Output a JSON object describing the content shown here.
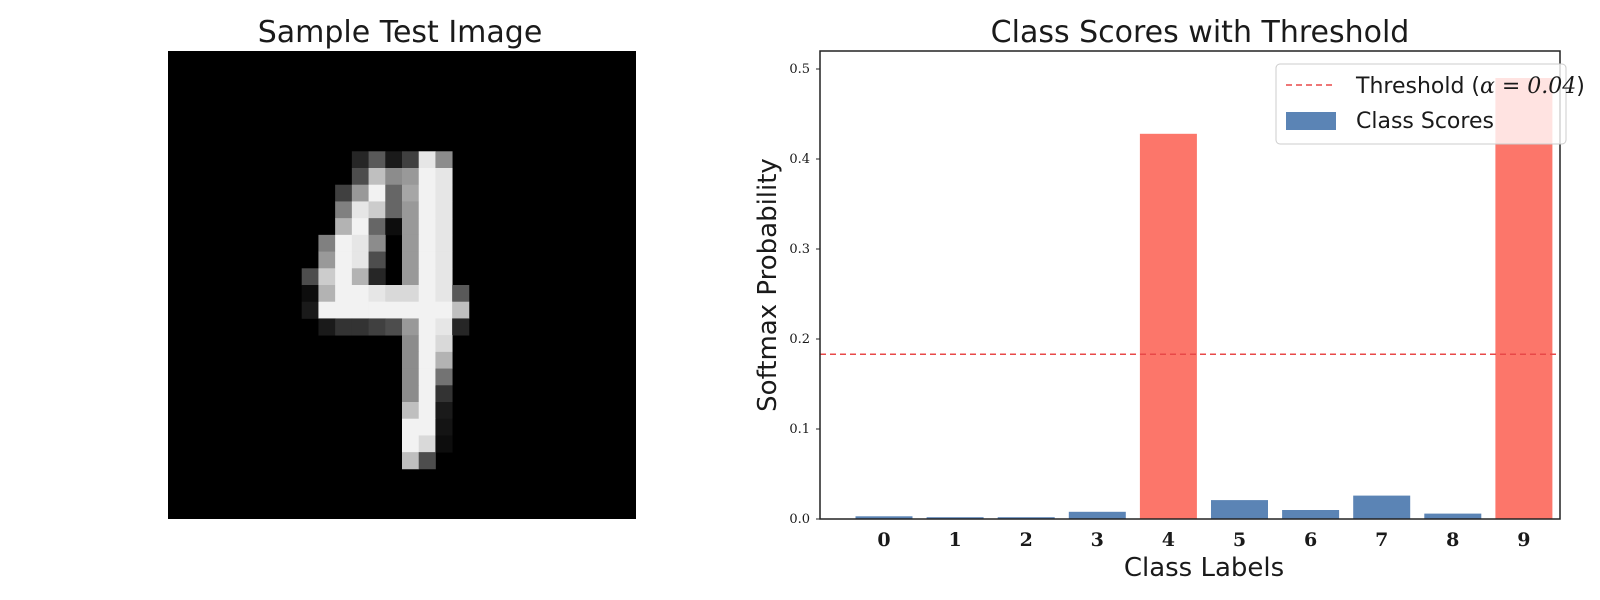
{
  "image_panel": {
    "title": "Sample Test Image",
    "grid_size": 28,
    "pixels": [
      {
        "r": 6,
        "c": 11,
        "v": 0.15
      },
      {
        "r": 6,
        "c": 12,
        "v": 0.35
      },
      {
        "r": 6,
        "c": 13,
        "v": 0.1
      },
      {
        "r": 6,
        "c": 14,
        "v": 0.25
      },
      {
        "r": 6,
        "c": 15,
        "v": 0.9
      },
      {
        "r": 6,
        "c": 16,
        "v": 0.55
      },
      {
        "r": 7,
        "c": 11,
        "v": 0.3
      },
      {
        "r": 7,
        "c": 12,
        "v": 0.75
      },
      {
        "r": 7,
        "c": 13,
        "v": 0.55
      },
      {
        "r": 7,
        "c": 14,
        "v": 0.6
      },
      {
        "r": 7,
        "c": 15,
        "v": 0.95
      },
      {
        "r": 7,
        "c": 16,
        "v": 0.9
      },
      {
        "r": 8,
        "c": 10,
        "v": 0.25
      },
      {
        "r": 8,
        "c": 11,
        "v": 0.6
      },
      {
        "r": 8,
        "c": 12,
        "v": 0.95
      },
      {
        "r": 8,
        "c": 13,
        "v": 0.4
      },
      {
        "r": 8,
        "c": 14,
        "v": 0.65
      },
      {
        "r": 8,
        "c": 15,
        "v": 0.95
      },
      {
        "r": 8,
        "c": 16,
        "v": 0.9
      },
      {
        "r": 9,
        "c": 10,
        "v": 0.5
      },
      {
        "r": 9,
        "c": 11,
        "v": 0.9
      },
      {
        "r": 9,
        "c": 12,
        "v": 0.8
      },
      {
        "r": 9,
        "c": 13,
        "v": 0.4
      },
      {
        "r": 9,
        "c": 14,
        "v": 0.6
      },
      {
        "r": 9,
        "c": 15,
        "v": 0.95
      },
      {
        "r": 9,
        "c": 16,
        "v": 0.9
      },
      {
        "r": 10,
        "c": 10,
        "v": 0.7
      },
      {
        "r": 10,
        "c": 11,
        "v": 0.95
      },
      {
        "r": 10,
        "c": 12,
        "v": 0.4
      },
      {
        "r": 10,
        "c": 13,
        "v": 0.05
      },
      {
        "r": 10,
        "c": 14,
        "v": 0.6
      },
      {
        "r": 10,
        "c": 15,
        "v": 0.95
      },
      {
        "r": 10,
        "c": 16,
        "v": 0.9
      },
      {
        "r": 11,
        "c": 9,
        "v": 0.5
      },
      {
        "r": 11,
        "c": 10,
        "v": 0.95
      },
      {
        "r": 11,
        "c": 11,
        "v": 0.9
      },
      {
        "r": 11,
        "c": 12,
        "v": 0.55
      },
      {
        "r": 11,
        "c": 14,
        "v": 0.6
      },
      {
        "r": 11,
        "c": 15,
        "v": 0.95
      },
      {
        "r": 11,
        "c": 16,
        "v": 0.9
      },
      {
        "r": 12,
        "c": 9,
        "v": 0.6
      },
      {
        "r": 12,
        "c": 10,
        "v": 0.95
      },
      {
        "r": 12,
        "c": 11,
        "v": 0.9
      },
      {
        "r": 12,
        "c": 12,
        "v": 0.3
      },
      {
        "r": 12,
        "c": 14,
        "v": 0.6
      },
      {
        "r": 12,
        "c": 15,
        "v": 0.95
      },
      {
        "r": 12,
        "c": 16,
        "v": 0.9
      },
      {
        "r": 13,
        "c": 8,
        "v": 0.3
      },
      {
        "r": 13,
        "c": 9,
        "v": 0.8
      },
      {
        "r": 13,
        "c": 10,
        "v": 0.95
      },
      {
        "r": 13,
        "c": 11,
        "v": 0.7
      },
      {
        "r": 13,
        "c": 12,
        "v": 0.15
      },
      {
        "r": 13,
        "c": 14,
        "v": 0.6
      },
      {
        "r": 13,
        "c": 15,
        "v": 0.95
      },
      {
        "r": 13,
        "c": 16,
        "v": 0.9
      },
      {
        "r": 14,
        "c": 8,
        "v": 0.05
      },
      {
        "r": 14,
        "c": 9,
        "v": 0.7
      },
      {
        "r": 14,
        "c": 10,
        "v": 0.95
      },
      {
        "r": 14,
        "c": 11,
        "v": 0.95
      },
      {
        "r": 14,
        "c": 12,
        "v": 0.9
      },
      {
        "r": 14,
        "c": 13,
        "v": 0.85
      },
      {
        "r": 14,
        "c": 14,
        "v": 0.85
      },
      {
        "r": 14,
        "c": 15,
        "v": 0.95
      },
      {
        "r": 14,
        "c": 16,
        "v": 0.9
      },
      {
        "r": 14,
        "c": 17,
        "v": 0.35
      },
      {
        "r": 15,
        "c": 8,
        "v": 0.1
      },
      {
        "r": 15,
        "c": 9,
        "v": 0.95
      },
      {
        "r": 15,
        "c": 10,
        "v": 0.95
      },
      {
        "r": 15,
        "c": 11,
        "v": 0.95
      },
      {
        "r": 15,
        "c": 12,
        "v": 0.95
      },
      {
        "r": 15,
        "c": 13,
        "v": 0.95
      },
      {
        "r": 15,
        "c": 14,
        "v": 0.95
      },
      {
        "r": 15,
        "c": 15,
        "v": 0.95
      },
      {
        "r": 15,
        "c": 16,
        "v": 0.95
      },
      {
        "r": 15,
        "c": 17,
        "v": 0.75
      },
      {
        "r": 16,
        "c": 9,
        "v": 0.1
      },
      {
        "r": 16,
        "c": 10,
        "v": 0.2
      },
      {
        "r": 16,
        "c": 11,
        "v": 0.2
      },
      {
        "r": 16,
        "c": 12,
        "v": 0.25
      },
      {
        "r": 16,
        "c": 13,
        "v": 0.3
      },
      {
        "r": 16,
        "c": 14,
        "v": 0.6
      },
      {
        "r": 16,
        "c": 15,
        "v": 0.95
      },
      {
        "r": 16,
        "c": 16,
        "v": 0.9
      },
      {
        "r": 16,
        "c": 17,
        "v": 0.15
      },
      {
        "r": 17,
        "c": 14,
        "v": 0.55
      },
      {
        "r": 17,
        "c": 15,
        "v": 0.95
      },
      {
        "r": 17,
        "c": 16,
        "v": 0.85
      },
      {
        "r": 18,
        "c": 14,
        "v": 0.55
      },
      {
        "r": 18,
        "c": 15,
        "v": 0.95
      },
      {
        "r": 18,
        "c": 16,
        "v": 0.7
      },
      {
        "r": 19,
        "c": 14,
        "v": 0.55
      },
      {
        "r": 19,
        "c": 15,
        "v": 0.95
      },
      {
        "r": 19,
        "c": 16,
        "v": 0.45
      },
      {
        "r": 20,
        "c": 14,
        "v": 0.55
      },
      {
        "r": 20,
        "c": 15,
        "v": 0.95
      },
      {
        "r": 20,
        "c": 16,
        "v": 0.2
      },
      {
        "r": 21,
        "c": 14,
        "v": 0.75
      },
      {
        "r": 21,
        "c": 15,
        "v": 0.95
      },
      {
        "r": 21,
        "c": 16,
        "v": 0.1
      },
      {
        "r": 22,
        "c": 14,
        "v": 0.95
      },
      {
        "r": 22,
        "c": 15,
        "v": 0.95
      },
      {
        "r": 22,
        "c": 16,
        "v": 0.08
      },
      {
        "r": 23,
        "c": 14,
        "v": 0.95
      },
      {
        "r": 23,
        "c": 15,
        "v": 0.85
      },
      {
        "r": 23,
        "c": 16,
        "v": 0.05
      },
      {
        "r": 24,
        "c": 14,
        "v": 0.75
      },
      {
        "r": 24,
        "c": 15,
        "v": 0.3
      }
    ]
  },
  "chart_data": {
    "type": "bar",
    "title": "Class Scores with Threshold",
    "xlabel": "Class Labels",
    "ylabel": "Softmax Probability",
    "categories": [
      "0",
      "1",
      "2",
      "3",
      "4",
      "5",
      "6",
      "7",
      "8",
      "9"
    ],
    "values": [
      0.003,
      0.002,
      0.002,
      0.008,
      0.428,
      0.021,
      0.01,
      0.026,
      0.006,
      0.49
    ],
    "highlighted": [
      false,
      false,
      false,
      false,
      true,
      false,
      false,
      false,
      false,
      true
    ],
    "yticks": [
      "0.0",
      "0.1",
      "0.2",
      "0.3",
      "0.4",
      "0.5"
    ],
    "ylim": [
      0,
      0.52
    ],
    "threshold": 0.183,
    "grid": false,
    "legend": {
      "placement": "top-right",
      "threshold_label_prefix": "Threshold (",
      "threshold_label_math": "α = 0.04",
      "threshold_label_suffix": ")",
      "series_label": "Class Scores"
    },
    "colors": {
      "bar": "#5b84b5",
      "highlight": "#fc766a",
      "threshold": "#e84848"
    }
  }
}
